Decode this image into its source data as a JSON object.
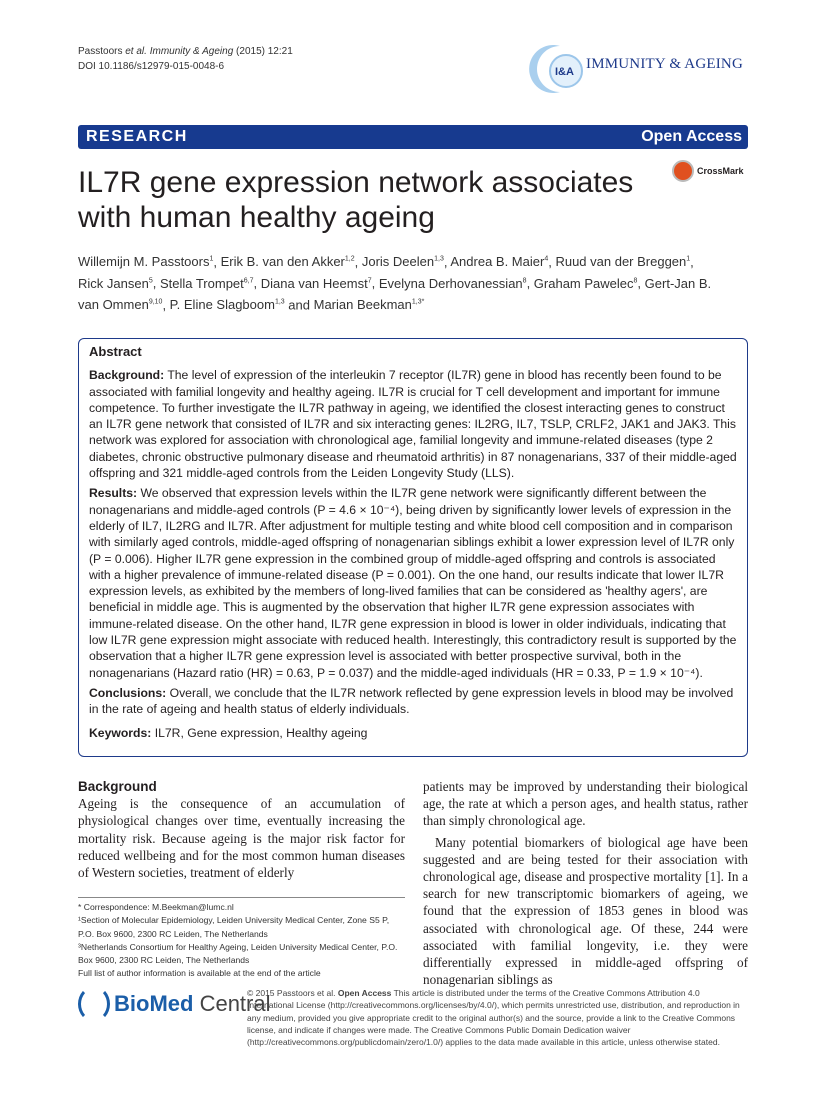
{
  "running_head": {
    "line1_authors": "Passtoors",
    "line1_etal": "et al.",
    "line1_journal": "Immunity & Ageing",
    "line1_rest": " (2015) 12:21",
    "doi": "DOI 10.1186/s12979-015-0048-6"
  },
  "journal": {
    "logo_text": "I&A",
    "name": "IMMUNITY & AGEING"
  },
  "banner": {
    "left": "RESEARCH",
    "right": "Open Access",
    "color": "#173a8f"
  },
  "crossmark": "CrossMark",
  "title": "IL7R gene expression network associates with human healthy ageing",
  "authors": [
    {
      "name": "Willemijn M. Passtoors",
      "sup": "1"
    },
    {
      "name": "Erik B. van den Akker",
      "sup": "1,2"
    },
    {
      "name": "Joris Deelen",
      "sup": "1,3"
    },
    {
      "name": "Andrea B. Maier",
      "sup": "4"
    },
    {
      "name": "Ruud van der Breggen",
      "sup": "1"
    },
    {
      "name": "Rick Jansen",
      "sup": "5"
    },
    {
      "name": "Stella Trompet",
      "sup": "6,7"
    },
    {
      "name": "Diana van Heemst",
      "sup": "7"
    },
    {
      "name": "Evelyna Derhovanessian",
      "sup": "8"
    },
    {
      "name": "Graham Pawelec",
      "sup": "8"
    },
    {
      "name": "Gert-Jan B. van Ommen",
      "sup": "9,10"
    },
    {
      "name": "P. Eline Slagboom",
      "sup": "1,3"
    },
    {
      "name": "Marian Beekman",
      "sup": "1,3*"
    }
  ],
  "abstract": {
    "heading": "Abstract",
    "sections": [
      {
        "label": "Background:",
        "text": " The level of expression of the interleukin 7 receptor (IL7R) gene in blood has recently been found to be associated with familial longevity and healthy ageing. IL7R is crucial for T cell development and important for immune competence. To further investigate the IL7R pathway in ageing, we identified the closest interacting genes to construct an IL7R gene network that consisted of IL7R and six interacting genes: IL2RG, IL7, TSLP, CRLF2, JAK1 and JAK3. This network was explored for association with chronological age, familial longevity and immune-related diseases (type 2 diabetes, chronic obstructive pulmonary disease and rheumatoid arthritis) in 87 nonagenarians, 337 of their middle-aged offspring and 321 middle-aged controls from the Leiden Longevity Study (LLS)."
      },
      {
        "label": "Results:",
        "text": " We observed that expression levels within the IL7R gene network were significantly different between the nonagenarians and middle-aged controls (P = 4.6 × 10⁻⁴), being driven by significantly lower levels of expression in the elderly of IL7, IL2RG and IL7R. After adjustment for multiple testing and white blood cell composition and in comparison with similarly aged controls, middle-aged offspring of nonagenarian siblings exhibit a lower expression level of IL7R only (P = 0.006). Higher IL7R gene expression in the combined group of middle-aged offspring and controls is associated with a higher prevalence of immune-related disease (P = 0.001). On the one hand, our results indicate that lower IL7R expression levels, as exhibited by the members of long-lived families that can be considered as 'healthy agers', are beneficial in middle age. This is augmented by the observation that higher IL7R gene expression associates with immune-related disease. On the other hand, IL7R gene expression in blood is lower in older individuals, indicating that low IL7R gene expression might associate with reduced health. Interestingly, this contradictory result is supported by the observation that a higher IL7R gene expression level is associated with better prospective survival, both in the nonagenarians (Hazard ratio (HR) = 0.63, P = 0.037) and the middle-aged individuals (HR = 0.33, P = 1.9 × 10⁻⁴)."
      },
      {
        "label": "Conclusions:",
        "text": " Overall, we conclude that the IL7R network reflected by gene expression levels in blood may be involved in the rate of ageing and health status of elderly individuals."
      },
      {
        "label": "Keywords:",
        "text": " IL7R, Gene expression, Healthy ageing"
      }
    ]
  },
  "body": {
    "heading": "Background",
    "left_text": "Ageing is the consequence of an accumulation of physiological changes over time, eventually increasing the mortality risk. Because ageing is the major risk factor for reduced wellbeing and for the most common human diseases of Western societies, treatment of elderly",
    "right_p1": "patients may be improved by understanding their biological age, the rate at which a person ages, and health status, rather than simply chronological age.",
    "right_p2": "Many potential biomarkers of biological age have been suggested and are being tested for their association with chronological age, disease and prospective mortality [1]. In a search for new transcriptomic biomarkers of ageing, we found that the expression of 1853 genes in blood was associated with chronological age. Of these, 244 were associated with familial longevity, i.e. they were differentially expressed in middle-aged offspring of nonagenarian siblings as"
  },
  "notes": [
    "* Correspondence: M.Beekman@lumc.nl",
    "¹Section of Molecular Epidemiology, Leiden University Medical Center, Zone S5 P, P.O. Box 9600, 2300 RC Leiden, The Netherlands",
    "³Netherlands Consortium for Healthy Ageing, Leiden University Medical Center, P.O. Box 9600, 2300 RC Leiden, The Netherlands",
    "Full list of author information is available at the end of the article"
  ],
  "publisher": {
    "bold": "BioMed",
    "rest": " Central"
  },
  "license": {
    "pre": "© 2015 Passtoors et al. ",
    "bold": "Open Access",
    "text": " This article is distributed under the terms of the Creative Commons Attribution 4.0 International License (http://creativecommons.org/licenses/by/4.0/), which permits unrestricted use, distribution, and reproduction in any medium, provided you give appropriate credit to the original author(s) and the source, provide a link to the Creative Commons license, and indicate if changes were made. The Creative Commons Public Domain Dedication waiver (http://creativecommons.org/publicdomain/zero/1.0/) applies to the data made available in this article, unless otherwise stated."
  }
}
